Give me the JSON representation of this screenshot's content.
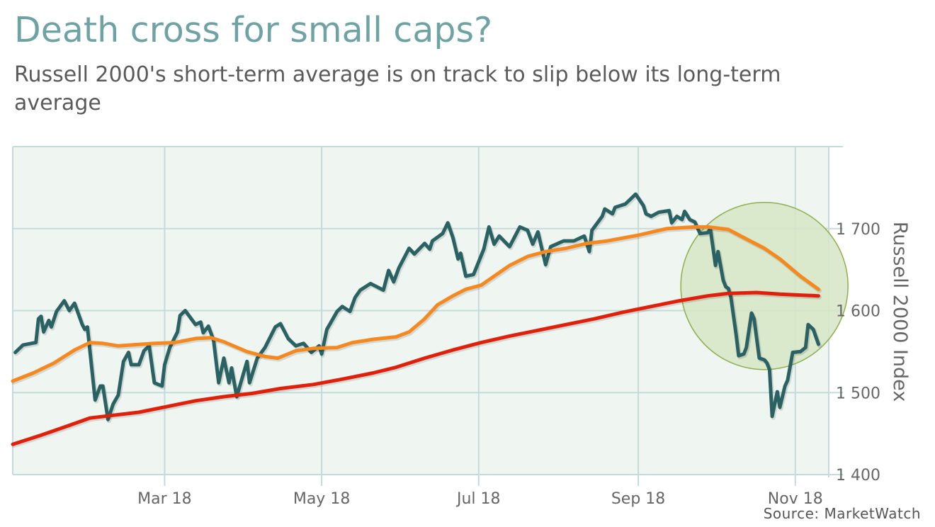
{
  "chart_data": {
    "type": "line",
    "title": "Death cross for small caps?",
    "subtitle": "Russell 2000's short-term average is on track to slip below its long-term average",
    "ylabel": "Russell 2000 Index",
    "xlabel": "",
    "source": "Source: MarketWatch",
    "xlim": [
      "2018-01-01",
      "2018-11-14"
    ],
    "ylim": [
      1400,
      1800
    ],
    "x_ticks": [
      {
        "date": "2018-03-01",
        "label": "Mar 18"
      },
      {
        "date": "2018-05-01",
        "label": "May 18"
      },
      {
        "date": "2018-07-01",
        "label": "Jul 18"
      },
      {
        "date": "2018-09-01",
        "label": "Sep 18"
      },
      {
        "date": "2018-11-01",
        "label": "Nov 18"
      }
    ],
    "y_ticks": [
      {
        "value": 1400,
        "label": "1 400"
      },
      {
        "value": 1500,
        "label": "1 500"
      },
      {
        "value": 1600,
        "label": "1 600"
      },
      {
        "value": 1700,
        "label": "1 700"
      }
    ],
    "grid": true,
    "legend": "none",
    "colors": {
      "background": "#eff6f1",
      "grid": "#c5dada",
      "title": "#6fa3a3",
      "annotation_fill": "#d6e5c6",
      "annotation_stroke": "#8fae4e"
    },
    "annotation": {
      "shape": "circle",
      "center_date": "2018-10-20",
      "center_value": 1630
    },
    "series": [
      {
        "id": "price",
        "color": "#2a6163",
        "points": [
          [
            "2018-01-02",
            1549
          ],
          [
            "2018-01-05",
            1558
          ],
          [
            "2018-01-10",
            1561
          ],
          [
            "2018-01-11",
            1590
          ],
          [
            "2018-01-12",
            1593
          ],
          [
            "2018-01-13",
            1574
          ],
          [
            "2018-01-15",
            1588
          ],
          [
            "2018-01-16",
            1580
          ],
          [
            "2018-01-18",
            1599
          ],
          [
            "2018-01-21",
            1612
          ],
          [
            "2018-01-23",
            1600
          ],
          [
            "2018-01-25",
            1609
          ],
          [
            "2018-01-28",
            1583
          ],
          [
            "2018-01-29",
            1577
          ],
          [
            "2018-01-30",
            1580
          ],
          [
            "2018-02-02",
            1491
          ],
          [
            "2018-02-04",
            1508
          ],
          [
            "2018-02-05",
            1508
          ],
          [
            "2018-02-07",
            1467
          ],
          [
            "2018-02-09",
            1486
          ],
          [
            "2018-02-11",
            1497
          ],
          [
            "2018-02-13",
            1538
          ],
          [
            "2018-02-15",
            1549
          ],
          [
            "2018-02-16",
            1534
          ],
          [
            "2018-02-19",
            1534
          ],
          [
            "2018-02-21",
            1551
          ],
          [
            "2018-02-23",
            1557
          ],
          [
            "2018-02-25",
            1512
          ],
          [
            "2018-02-28",
            1508
          ],
          [
            "2018-03-01",
            1534
          ],
          [
            "2018-03-03",
            1555
          ],
          [
            "2018-03-06",
            1574
          ],
          [
            "2018-03-07",
            1594
          ],
          [
            "2018-03-09",
            1600
          ],
          [
            "2018-03-13",
            1583
          ],
          [
            "2018-03-15",
            1586
          ],
          [
            "2018-03-16",
            1573
          ],
          [
            "2018-03-18",
            1581
          ],
          [
            "2018-03-20",
            1564
          ],
          [
            "2018-03-22",
            1512
          ],
          [
            "2018-03-24",
            1542
          ],
          [
            "2018-03-26",
            1512
          ],
          [
            "2018-03-27",
            1530
          ],
          [
            "2018-03-29",
            1495
          ],
          [
            "2018-04-02",
            1538
          ],
          [
            "2018-04-03",
            1512
          ],
          [
            "2018-04-06",
            1542
          ],
          [
            "2018-04-09",
            1555
          ],
          [
            "2018-04-13",
            1580
          ],
          [
            "2018-04-15",
            1584
          ],
          [
            "2018-04-18",
            1566
          ],
          [
            "2018-04-21",
            1557
          ],
          [
            "2018-04-24",
            1560
          ],
          [
            "2018-04-27",
            1549
          ],
          [
            "2018-04-30",
            1557
          ],
          [
            "2018-05-01",
            1547
          ],
          [
            "2018-05-03",
            1577
          ],
          [
            "2018-05-07",
            1599
          ],
          [
            "2018-05-09",
            1605
          ],
          [
            "2018-05-12",
            1599
          ],
          [
            "2018-05-14",
            1616
          ],
          [
            "2018-05-16",
            1625
          ],
          [
            "2018-05-20",
            1633
          ],
          [
            "2018-05-25",
            1625
          ],
          [
            "2018-05-27",
            1649
          ],
          [
            "2018-05-29",
            1635
          ],
          [
            "2018-05-31",
            1652
          ],
          [
            "2018-06-04",
            1676
          ],
          [
            "2018-06-06",
            1669
          ],
          [
            "2018-06-10",
            1682
          ],
          [
            "2018-06-12",
            1675
          ],
          [
            "2018-06-13",
            1685
          ],
          [
            "2018-06-17",
            1694
          ],
          [
            "2018-06-19",
            1707
          ],
          [
            "2018-06-21",
            1689
          ],
          [
            "2018-06-23",
            1663
          ],
          [
            "2018-06-24",
            1670
          ],
          [
            "2018-06-26",
            1642
          ],
          [
            "2018-06-29",
            1644
          ],
          [
            "2018-07-03",
            1675
          ],
          [
            "2018-07-05",
            1702
          ],
          [
            "2018-07-07",
            1681
          ],
          [
            "2018-07-09",
            1691
          ],
          [
            "2018-07-13",
            1678
          ],
          [
            "2018-07-17",
            1702
          ],
          [
            "2018-07-20",
            1698
          ],
          [
            "2018-07-22",
            1681
          ],
          [
            "2018-07-24",
            1696
          ],
          [
            "2018-07-27",
            1656
          ],
          [
            "2018-07-29",
            1678
          ],
          [
            "2018-08-03",
            1685
          ],
          [
            "2018-08-07",
            1685
          ],
          [
            "2018-08-11",
            1691
          ],
          [
            "2018-08-13",
            1672
          ],
          [
            "2018-08-14",
            1698
          ],
          [
            "2018-08-18",
            1715
          ],
          [
            "2018-08-19",
            1724
          ],
          [
            "2018-08-22",
            1718
          ],
          [
            "2018-08-23",
            1726
          ],
          [
            "2018-08-27",
            1730
          ],
          [
            "2018-08-31",
            1742
          ],
          [
            "2018-09-03",
            1728
          ],
          [
            "2018-09-04",
            1718
          ],
          [
            "2018-09-06",
            1715
          ],
          [
            "2018-09-09",
            1720
          ],
          [
            "2018-09-13",
            1722
          ],
          [
            "2018-09-14",
            1707
          ],
          [
            "2018-09-16",
            1715
          ],
          [
            "2018-09-18",
            1711
          ],
          [
            "2018-09-19",
            1721
          ],
          [
            "2018-09-21",
            1711
          ],
          [
            "2018-09-23",
            1708
          ],
          [
            "2018-09-25",
            1694
          ],
          [
            "2018-09-28",
            1695
          ],
          [
            "2018-09-29",
            1700
          ],
          [
            "2018-10-01",
            1655
          ],
          [
            "2018-10-02",
            1672
          ],
          [
            "2018-10-04",
            1637
          ],
          [
            "2018-10-05",
            1629
          ],
          [
            "2018-10-06",
            1627
          ],
          [
            "2018-10-07",
            1616
          ],
          [
            "2018-10-09",
            1571
          ],
          [
            "2018-10-10",
            1545
          ],
          [
            "2018-10-12",
            1547
          ],
          [
            "2018-10-13",
            1555
          ],
          [
            "2018-10-15",
            1597
          ],
          [
            "2018-10-16",
            1590
          ],
          [
            "2018-10-18",
            1542
          ],
          [
            "2018-10-20",
            1540
          ],
          [
            "2018-10-21",
            1536
          ],
          [
            "2018-10-22",
            1528
          ],
          [
            "2018-10-23",
            1471
          ],
          [
            "2018-10-25",
            1501
          ],
          [
            "2018-10-26",
            1482
          ],
          [
            "2018-10-28",
            1508
          ],
          [
            "2018-10-29",
            1515
          ],
          [
            "2018-10-31",
            1549
          ],
          [
            "2018-11-03",
            1550
          ],
          [
            "2018-11-05",
            1555
          ],
          [
            "2018-11-06",
            1583
          ],
          [
            "2018-11-08",
            1577
          ],
          [
            "2018-11-10",
            1559
          ]
        ]
      },
      {
        "id": "short-term-average",
        "color": "#f5891f",
        "points": [
          [
            "2018-01-01",
            1514
          ],
          [
            "2018-01-09",
            1524
          ],
          [
            "2018-01-17",
            1536
          ],
          [
            "2018-01-25",
            1552
          ],
          [
            "2018-01-31",
            1561
          ],
          [
            "2018-02-05",
            1560
          ],
          [
            "2018-02-11",
            1557
          ],
          [
            "2018-02-25",
            1560
          ],
          [
            "2018-03-05",
            1561
          ],
          [
            "2018-03-13",
            1566
          ],
          [
            "2018-03-19",
            1567
          ],
          [
            "2018-03-24",
            1562
          ],
          [
            "2018-04-02",
            1550
          ],
          [
            "2018-04-09",
            1544
          ],
          [
            "2018-04-14",
            1542
          ],
          [
            "2018-04-21",
            1551
          ],
          [
            "2018-04-28",
            1554
          ],
          [
            "2018-05-07",
            1555
          ],
          [
            "2018-05-13",
            1561
          ],
          [
            "2018-05-21",
            1565
          ],
          [
            "2018-05-30",
            1568
          ],
          [
            "2018-06-04",
            1574
          ],
          [
            "2018-06-10",
            1590
          ],
          [
            "2018-06-15",
            1607
          ],
          [
            "2018-06-21",
            1618
          ],
          [
            "2018-06-26",
            1626
          ],
          [
            "2018-07-02",
            1631
          ],
          [
            "2018-07-07",
            1642
          ],
          [
            "2018-07-13",
            1655
          ],
          [
            "2018-07-20",
            1666
          ],
          [
            "2018-07-27",
            1672
          ],
          [
            "2018-08-04",
            1676
          ],
          [
            "2018-08-12",
            1682
          ],
          [
            "2018-08-20",
            1685
          ],
          [
            "2018-09-01",
            1692
          ],
          [
            "2018-09-12",
            1700
          ],
          [
            "2018-09-23",
            1702
          ],
          [
            "2018-09-28",
            1702
          ],
          [
            "2018-10-06",
            1699
          ],
          [
            "2018-10-12",
            1689
          ],
          [
            "2018-10-20",
            1676
          ],
          [
            "2018-10-26",
            1663
          ],
          [
            "2018-11-03",
            1642
          ],
          [
            "2018-11-10",
            1626
          ]
        ]
      },
      {
        "id": "long-term-average",
        "color": "#e0200a",
        "points": [
          [
            "2018-01-01",
            1437
          ],
          [
            "2018-01-12",
            1448
          ],
          [
            "2018-01-23",
            1460
          ],
          [
            "2018-01-31",
            1469
          ],
          [
            "2018-02-08",
            1472
          ],
          [
            "2018-02-19",
            1476
          ],
          [
            "2018-03-02",
            1483
          ],
          [
            "2018-03-13",
            1490
          ],
          [
            "2018-03-24",
            1495
          ],
          [
            "2018-04-04",
            1499
          ],
          [
            "2018-04-15",
            1505
          ],
          [
            "2018-04-28",
            1510
          ],
          [
            "2018-05-10",
            1517
          ],
          [
            "2018-05-21",
            1524
          ],
          [
            "2018-05-30",
            1531
          ],
          [
            "2018-06-10",
            1542
          ],
          [
            "2018-06-21",
            1552
          ],
          [
            "2018-07-02",
            1561
          ],
          [
            "2018-07-13",
            1569
          ],
          [
            "2018-07-24",
            1576
          ],
          [
            "2018-08-04",
            1583
          ],
          [
            "2018-08-15",
            1590
          ],
          [
            "2018-08-26",
            1598
          ],
          [
            "2018-09-06",
            1605
          ],
          [
            "2018-09-17",
            1612
          ],
          [
            "2018-09-28",
            1618
          ],
          [
            "2018-10-06",
            1621
          ],
          [
            "2018-10-17",
            1622
          ],
          [
            "2018-10-26",
            1620
          ],
          [
            "2018-11-10",
            1618
          ]
        ]
      }
    ]
  }
}
